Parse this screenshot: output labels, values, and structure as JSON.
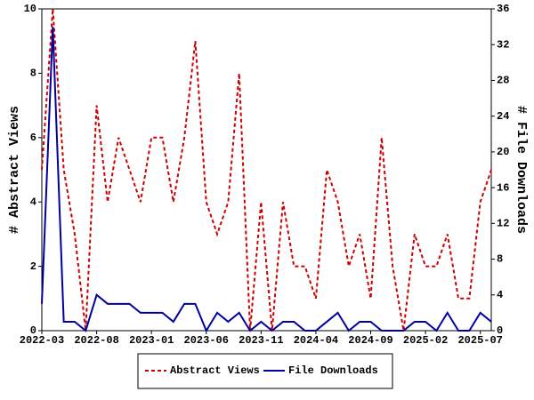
{
  "chart_data": {
    "type": "line",
    "categories": [
      "2022-03",
      null,
      null,
      null,
      null,
      "2022-08",
      null,
      null,
      null,
      null,
      "2023-01",
      null,
      null,
      null,
      null,
      "2023-06",
      null,
      null,
      null,
      null,
      "2023-11",
      null,
      null,
      null,
      null,
      "2024-04",
      null,
      null,
      null,
      null,
      "2024-09",
      null,
      null,
      null,
      null,
      "2025-02",
      null,
      null,
      null,
      null,
      "2025-07",
      null
    ],
    "ylabel": "# Abstract Views",
    "y2label": "# File Downloads",
    "ylim": [
      0,
      10
    ],
    "yticks": [
      0,
      2,
      4,
      6,
      8,
      10
    ],
    "y2lim": [
      0,
      36
    ],
    "y2ticks": [
      0,
      4,
      8,
      12,
      16,
      20,
      24,
      28,
      32,
      36
    ],
    "legend": "bottom",
    "series": [
      {
        "name": "Abstract Views",
        "color": "#cc0000",
        "dash": true,
        "values": [
          5,
          10,
          5,
          3,
          0,
          7,
          4,
          6,
          5,
          4,
          6,
          6,
          4,
          6,
          9,
          4,
          3,
          4,
          8,
          0,
          4,
          0,
          4,
          2,
          2,
          1,
          5,
          4,
          2,
          3,
          1,
          6,
          2,
          0,
          3,
          2,
          2,
          3,
          1,
          1,
          4,
          5
        ]
      },
      {
        "name": "File Downloads",
        "color": "#0000a0",
        "axis": "y2",
        "values": [
          3,
          34,
          1,
          1,
          0,
          4,
          3,
          3,
          3,
          2,
          2,
          2,
          1,
          3,
          3,
          0,
          2,
          1,
          2,
          0,
          1,
          0,
          1,
          1,
          0,
          0,
          1,
          2,
          0,
          1,
          1,
          0,
          0,
          0,
          1,
          1,
          0,
          2,
          0,
          0,
          2,
          1
        ]
      }
    ]
  }
}
